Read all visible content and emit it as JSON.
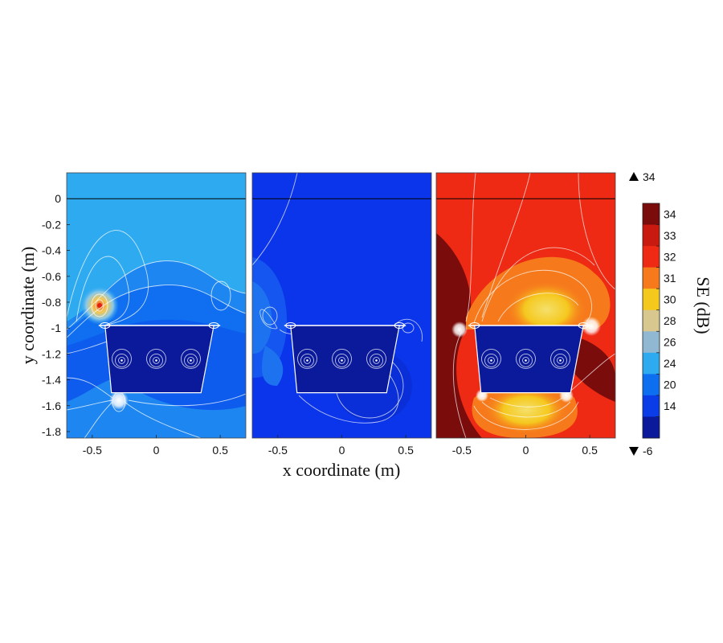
{
  "chart_data": {
    "type": "heatmap",
    "title": "",
    "xlabel": "x coordinate (m)",
    "ylabel": "y coordinate (m)",
    "xlim": [
      -0.7,
      0.7
    ],
    "ylim": [
      -1.85,
      0.2
    ],
    "x_ticks": [
      "-0.5",
      "0",
      "0.5"
    ],
    "x_tick_values": [
      -0.5,
      0,
      0.5
    ],
    "y_ticks": [
      "0",
      "-0.2",
      "-0.4",
      "-0.6",
      "-0.8",
      "-1",
      "-1.2",
      "-1.4",
      "-1.6",
      "-1.8"
    ],
    "y_tick_values": [
      0,
      -0.2,
      -0.4,
      -0.6,
      -0.8,
      -1,
      -1.2,
      -1.4,
      -1.6,
      -1.8
    ],
    "ground_line_y": 0,
    "shield_box": {
      "top_y": -0.98,
      "bottom_y": -1.5,
      "top_x": [
        -0.4,
        0.45
      ],
      "bottom_x": [
        -0.35,
        0.35
      ]
    },
    "conductor_positions": [
      {
        "x": -0.27,
        "y": -1.25
      },
      {
        "x": 0.0,
        "y": -1.25
      },
      {
        "x": 0.27,
        "y": -1.25
      }
    ],
    "panels": [
      {
        "background_level": 25,
        "inner_level": 12,
        "hot_spot": {
          "x": -0.44,
          "y": -0.82,
          "level": 30
        }
      },
      {
        "background_level": 15,
        "inner_level": 12,
        "hot_spot": null
      },
      {
        "background_level": 33,
        "inner_level": 12,
        "hot_spot": null
      }
    ],
    "colorbar": {
      "label": "SE (dB)",
      "tick_labels": [
        "34",
        "33",
        "32",
        "31",
        "30",
        "28",
        "26",
        "24",
        "20",
        "14"
      ],
      "colors": [
        "#7a0c0c",
        "#c81a0e",
        "#ee2a14",
        "#f67a1c",
        "#f5c81e",
        "#d8c890",
        "#90b8d2",
        "#2eaaf0",
        "#0d6ef0",
        "#0a3ce8",
        "#0a1a9a"
      ],
      "over_label": "34",
      "under_label": "-6",
      "over_color": "#7a0c0c",
      "under_color": "#0a1a9a"
    }
  }
}
